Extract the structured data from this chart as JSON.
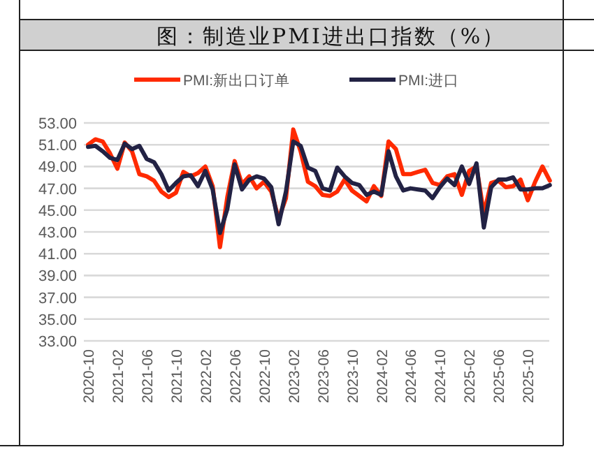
{
  "chart_data": {
    "type": "line",
    "title": "图：制造业PMI进出口指数（%）",
    "categories": [
      "2020-10",
      null,
      null,
      null,
      "2021-02",
      null,
      null,
      null,
      "2021-06",
      null,
      null,
      null,
      "2021-10",
      null,
      null,
      null,
      "2022-02",
      null,
      null,
      null,
      "2022-06",
      null,
      null,
      null,
      "2022-10",
      null,
      null,
      null,
      "2023-02",
      null,
      null,
      null,
      "2023-06",
      null,
      null,
      null,
      "2023-10",
      null,
      null,
      null,
      "2024-02",
      null,
      null,
      null,
      "2024-06",
      null,
      null,
      null,
      "2024-10",
      null,
      null,
      null,
      "2025-02",
      null,
      null,
      null,
      "2025-06",
      null,
      null,
      null,
      "2025-10",
      null,
      null,
      null
    ],
    "series": [
      {
        "name": "PMI:新出口订单",
        "color": "#ff2a00",
        "values": [
          51.0,
          51.5,
          51.3,
          50.2,
          48.8,
          51.2,
          50.4,
          48.3,
          48.1,
          47.7,
          46.7,
          46.2,
          46.6,
          48.5,
          48.1,
          48.4,
          49.0,
          47.2,
          41.6,
          46.2,
          49.5,
          47.4,
          48.1,
          47.0,
          47.6,
          46.7,
          44.2,
          46.1,
          52.4,
          50.4,
          47.6,
          47.2,
          46.4,
          46.3,
          46.7,
          47.8,
          46.8,
          46.3,
          45.8,
          47.2,
          46.3,
          51.3,
          50.6,
          48.3,
          48.3,
          48.5,
          48.7,
          47.5,
          47.3,
          48.1,
          48.3,
          46.4,
          48.6,
          49.0,
          44.7,
          47.5,
          47.7,
          47.1,
          47.2,
          47.8,
          45.9,
          47.6,
          49.0,
          47.7
        ]
      },
      {
        "name": "PMI:进口",
        "color": "#222244",
        "values": [
          50.8,
          50.9,
          50.4,
          49.8,
          49.6,
          51.1,
          50.6,
          50.9,
          49.7,
          49.4,
          48.3,
          46.8,
          47.5,
          48.1,
          48.2,
          47.2,
          48.6,
          46.9,
          42.9,
          45.1,
          49.2,
          46.9,
          47.8,
          48.1,
          47.9,
          47.1,
          43.7,
          46.7,
          51.3,
          50.9,
          48.9,
          48.6,
          47.0,
          46.8,
          48.9,
          48.1,
          47.5,
          47.3,
          46.4,
          46.7,
          46.4,
          50.4,
          48.1,
          46.8,
          47.0,
          46.9,
          46.8,
          46.1,
          47.1,
          47.9,
          47.3,
          49.0,
          47.4,
          49.3,
          43.4,
          47.1,
          47.8,
          47.8,
          48.0,
          46.9,
          46.9,
          47.0,
          47.0,
          47.3
        ]
      }
    ],
    "ylim": [
      33,
      53
    ],
    "yticks": [
      {
        "value": 33,
        "label": "33.00"
      },
      {
        "value": 35,
        "label": "35.00"
      },
      {
        "value": 37,
        "label": "37.00"
      },
      {
        "value": 39,
        "label": "39.00"
      },
      {
        "value": 41,
        "label": "41.00"
      },
      {
        "value": 43,
        "label": "43.00"
      },
      {
        "value": 45,
        "label": "45.00"
      },
      {
        "value": 47,
        "label": "47.00"
      },
      {
        "value": 49,
        "label": "49.00"
      },
      {
        "value": 51,
        "label": "51.00"
      },
      {
        "value": 53,
        "label": "53.00"
      }
    ],
    "grid": "y",
    "legend": "top",
    "line_style": "solid"
  }
}
